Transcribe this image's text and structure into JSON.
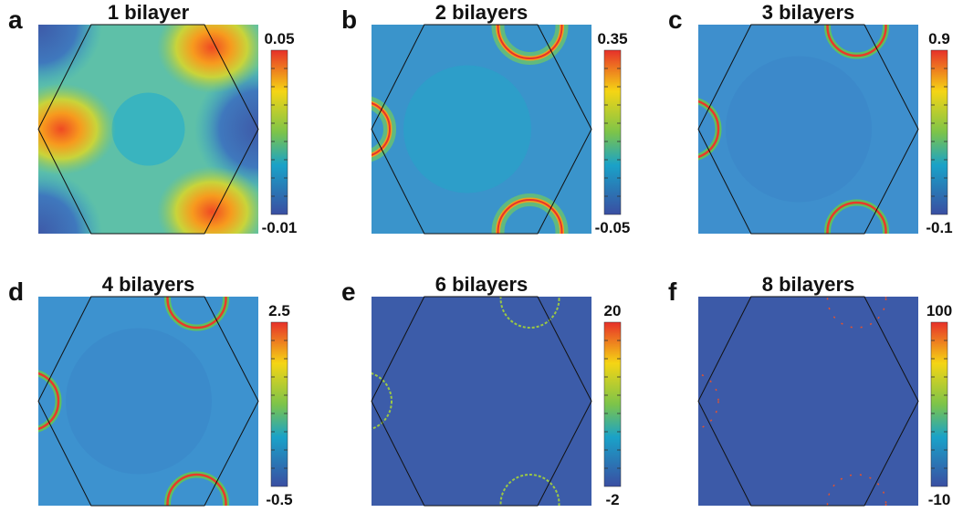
{
  "panels": [
    {
      "letter": "a",
      "title": "1 bilayer",
      "colorbar_max": "0.05",
      "colorbar_min": "-0.01"
    },
    {
      "letter": "b",
      "title": "2 bilayers",
      "colorbar_max": "0.35",
      "colorbar_min": "-0.05"
    },
    {
      "letter": "c",
      "title": "3 bilayers",
      "colorbar_max": "0.9",
      "colorbar_min": "-0.1"
    },
    {
      "letter": "d",
      "title": "4 bilayers",
      "colorbar_max": "2.5",
      "colorbar_min": "-0.5"
    },
    {
      "letter": "e",
      "title": "6 bilayers",
      "colorbar_max": "20",
      "colorbar_min": "-2"
    },
    {
      "letter": "f",
      "title": "8 bilayers",
      "colorbar_max": "100",
      "colorbar_min": "-10"
    }
  ]
}
